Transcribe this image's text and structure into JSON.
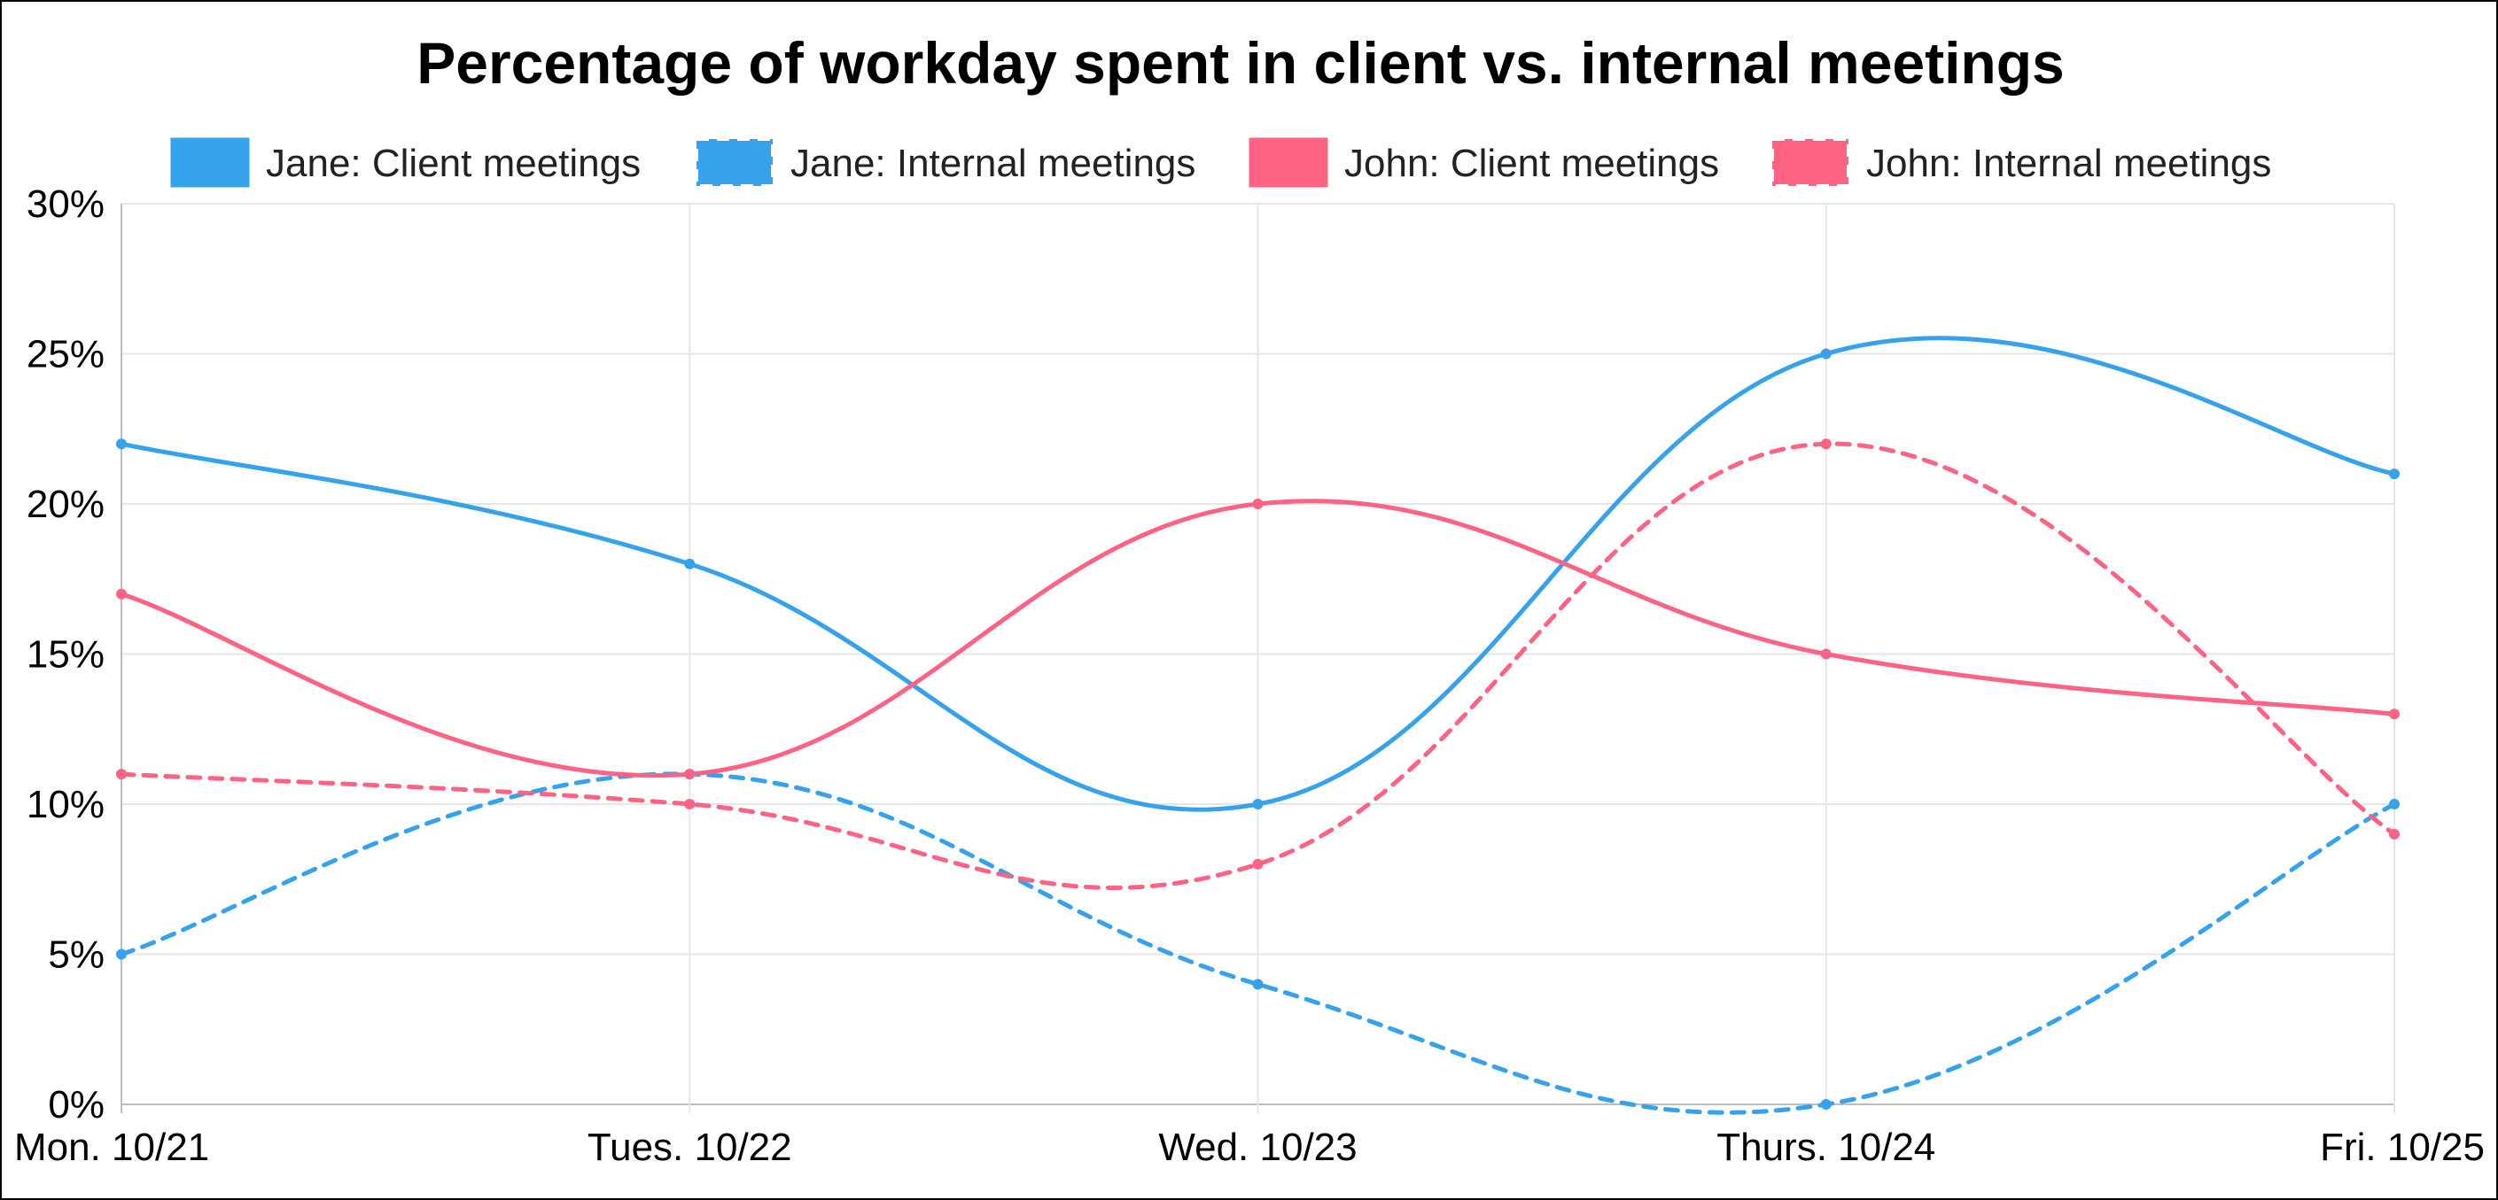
{
  "colors": {
    "jane": "#36a2eb",
    "john": "#ff6384"
  },
  "chart_data": {
    "type": "line",
    "title": "Percentage of workday spent in client vs. internal meetings",
    "xlabel": "",
    "ylabel": "",
    "categories": [
      "Mon. 10/21",
      "Tues. 10/22",
      "Wed. 10/23",
      "Thurs. 10/24",
      "Fri. 10/25"
    ],
    "ylim": [
      0,
      30
    ],
    "y_ticks": [
      "0%",
      "5%",
      "10%",
      "15%",
      "20%",
      "25%",
      "30%"
    ],
    "grid": true,
    "legend_position": "top",
    "series": [
      {
        "name": "Jane: Client meetings",
        "values": [
          22,
          18,
          10,
          25,
          21
        ],
        "color": "#36a2eb",
        "dashed": false
      },
      {
        "name": "Jane: Internal meetings",
        "values": [
          5,
          11,
          4,
          0,
          10
        ],
        "color": "#36a2eb",
        "dashed": true
      },
      {
        "name": "John: Client meetings",
        "values": [
          17,
          11,
          20,
          15,
          13
        ],
        "color": "#ff6384",
        "dashed": false
      },
      {
        "name": "John: Internal meetings",
        "values": [
          11,
          10,
          8,
          22,
          9
        ],
        "color": "#ff6384",
        "dashed": true
      }
    ]
  }
}
